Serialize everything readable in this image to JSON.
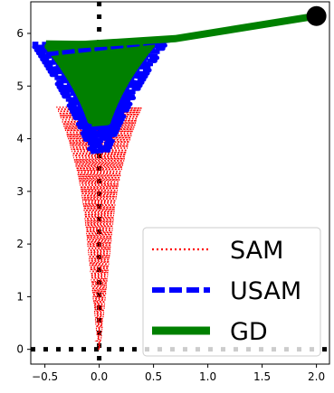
{
  "chart_data": {
    "type": "line",
    "title": "",
    "xlabel": "",
    "ylabel": "",
    "xlim": [
      -0.63,
      2.12
    ],
    "ylim": [
      -0.28,
      6.6
    ],
    "xticks": [
      -0.5,
      0.0,
      0.5,
      1.0,
      1.5,
      2.0
    ],
    "xtick_labels": [
      "−0.5",
      "0.0",
      "0.5",
      "1.0",
      "1.5",
      "2.0"
    ],
    "yticks": [
      0,
      1,
      2,
      3,
      4,
      5,
      6
    ],
    "ytick_labels": [
      "0",
      "1",
      "2",
      "3",
      "4",
      "5",
      "6"
    ],
    "grid": false,
    "legend_position": "lower-right",
    "reference_lines": {
      "x": 0.0,
      "y": 0.0,
      "style": "dotted",
      "color": "#000000"
    },
    "start_point": {
      "x": 2.0,
      "y": 6.33,
      "color": "#000000"
    },
    "series": [
      {
        "name": "SAM",
        "color": "#ff0000",
        "style": "dotted",
        "shape": "narrow funnel, oscillating in x, widening from y≈0 to y≈4.5, with the GD approach segment from the start point",
        "points": [
          [
            2.0,
            6.33
          ],
          [
            0.55,
            5.55
          ],
          [
            -0.02,
            0.0
          ],
          [
            -0.03,
            1.0
          ],
          [
            0.04,
            2.0
          ],
          [
            -0.08,
            3.0
          ],
          [
            0.1,
            3.6
          ],
          [
            -0.15,
            4.0
          ],
          [
            0.18,
            4.3
          ],
          [
            -0.2,
            4.5
          ]
        ]
      },
      {
        "name": "USAM",
        "color": "#0000ff",
        "style": "dashed",
        "shape": "funnel oscillating in x, from y≈3.8 up to y≈5.8",
        "points": [
          [
            2.0,
            6.33
          ],
          [
            0.6,
            5.85
          ],
          [
            -0.5,
            5.6
          ],
          [
            0.55,
            5.4
          ],
          [
            -0.4,
            5.0
          ],
          [
            0.4,
            4.6
          ],
          [
            -0.3,
            4.2
          ],
          [
            0.15,
            3.9
          ],
          [
            -0.05,
            3.8
          ]
        ]
      },
      {
        "name": "GD",
        "color": "#008000",
        "style": "solid",
        "shape": "oscillating band from y≈5.8 down to y≈4.3, reached directly from the start point",
        "points": [
          [
            2.0,
            6.33
          ],
          [
            0.7,
            5.9
          ],
          [
            -0.45,
            5.75
          ],
          [
            0.5,
            5.5
          ],
          [
            -0.35,
            5.2
          ],
          [
            0.35,
            4.9
          ],
          [
            -0.2,
            4.6
          ],
          [
            0.15,
            4.45
          ],
          [
            0.0,
            4.35
          ]
        ]
      }
    ]
  }
}
